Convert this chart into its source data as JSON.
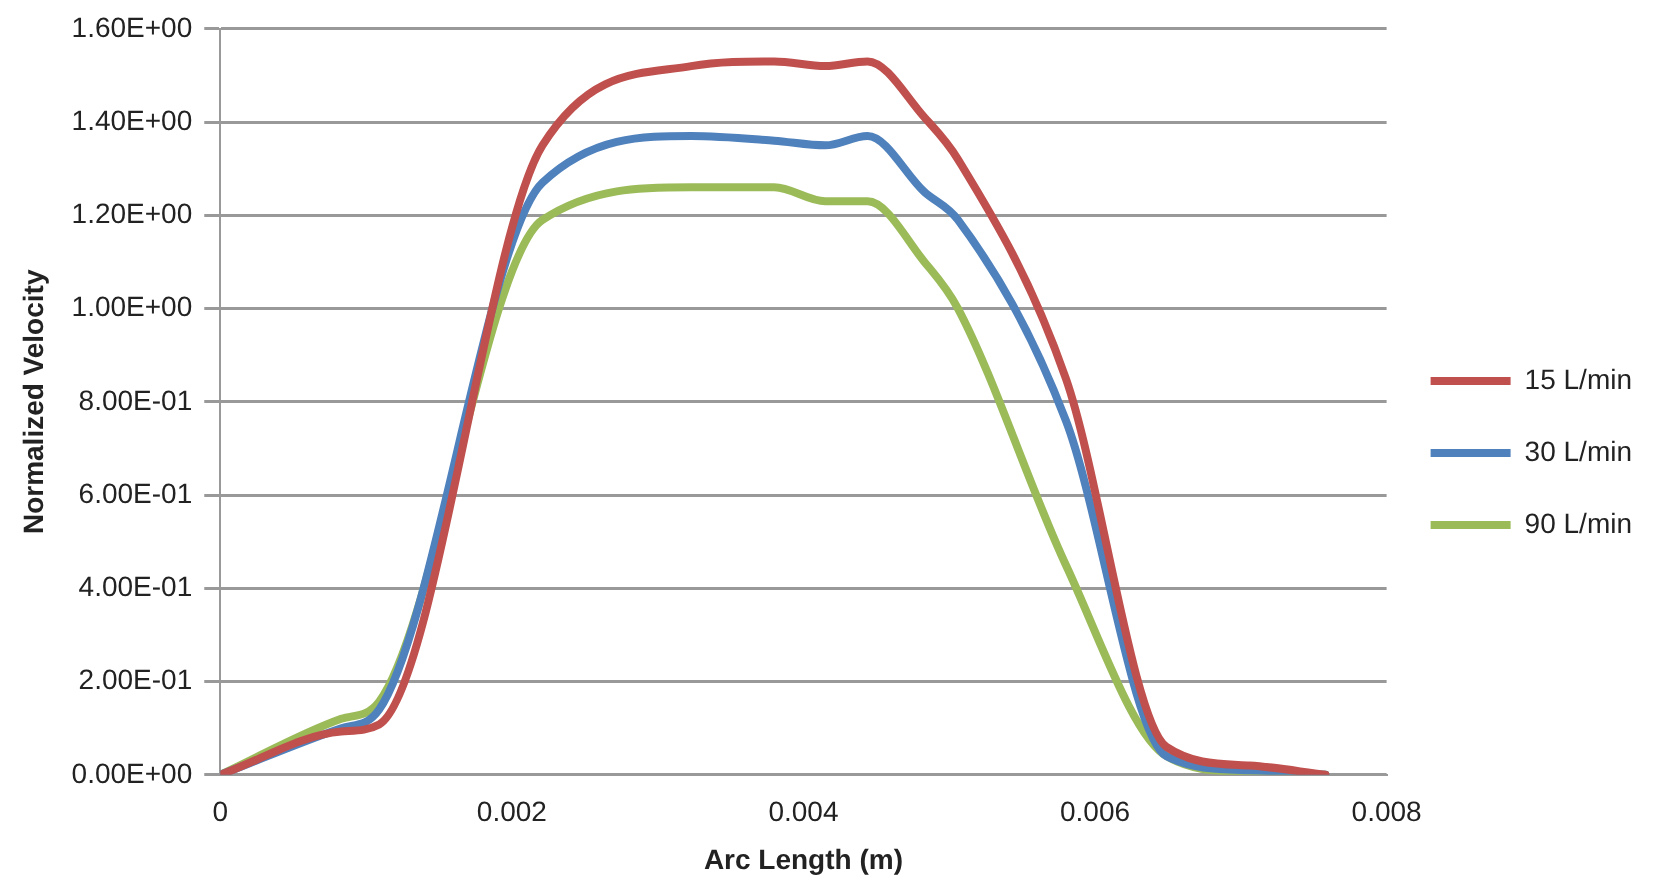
{
  "chart_data": {
    "type": "line",
    "xlabel": "Arc Length (m)",
    "ylabel": "Normalized Velocity",
    "x": [
      0,
      0.00083,
      0.00109,
      0.00221,
      0.00323,
      0.0038,
      0.00415,
      0.00444,
      0.00483,
      0.00506,
      0.0058,
      0.00649,
      0.00706,
      0.00758
    ],
    "series": [
      {
        "name": "15 L/min",
        "color": "#c0504d",
        "values": [
          0,
          0.093,
          0.108,
          1.35,
          1.52,
          1.53,
          1.52,
          1.53,
          1.41,
          1.32,
          0.85,
          0.06,
          0.02,
          0
        ]
      },
      {
        "name": "30 L/min",
        "color": "#4f81bd",
        "values": [
          0,
          0.1,
          0.14,
          1.27,
          1.37,
          1.36,
          1.35,
          1.37,
          1.25,
          1.19,
          0.76,
          0.04,
          0.01,
          0
        ]
      },
      {
        "name": "90 L/min",
        "color": "#9bbb59",
        "values": [
          0,
          0.12,
          0.157,
          1.19,
          1.26,
          1.26,
          1.23,
          1.23,
          1.1,
          1.0,
          0.45,
          0.04,
          0.005,
          0
        ]
      }
    ],
    "xlim": [
      0,
      0.008
    ],
    "xticks": [
      0,
      0.002,
      0.004,
      0.006,
      0.008
    ],
    "ylim": [
      0,
      1.6
    ],
    "yticks": [
      {
        "value": 0,
        "label": "0.00E+00"
      },
      {
        "value": 0.2,
        "label": "2.00E-01"
      },
      {
        "value": 0.4,
        "label": "4.00E-01"
      },
      {
        "value": 0.6,
        "label": "6.00E-01"
      },
      {
        "value": 0.8,
        "label": "8.00E-01"
      },
      {
        "value": 1,
        "label": "1.00E+00"
      },
      {
        "value": 1.2,
        "label": "1.20E+00"
      },
      {
        "value": 1.4,
        "label": "1.40E+00"
      },
      {
        "value": 1.6,
        "label": "1.60E+00"
      }
    ],
    "grid": "y",
    "legend": "right",
    "marker": "none",
    "line_style": "solid"
  }
}
